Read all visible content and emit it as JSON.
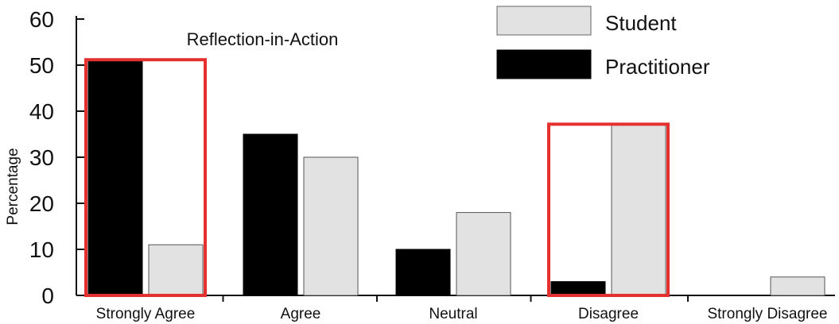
{
  "chart_data": {
    "type": "bar",
    "title": "Reflection-in-Action",
    "xlabel": "",
    "ylabel": "Percentage",
    "ylim": [
      0,
      60
    ],
    "yticks": [
      0,
      10,
      20,
      30,
      40,
      50,
      60
    ],
    "categories": [
      "Strongly Agree",
      "Agree",
      "Neutral",
      "Disagree",
      "Strongly Disagree"
    ],
    "series": [
      {
        "name": "Practitioner",
        "color": "#000000",
        "values": [
          51,
          35,
          10,
          3,
          0
        ]
      },
      {
        "name": "Student",
        "color": "#e2e2e2",
        "values": [
          11,
          30,
          18,
          37,
          4
        ]
      }
    ],
    "legend": {
      "position": "top-right",
      "order": [
        "Student",
        "Practitioner"
      ]
    },
    "highlights": {
      "color": "#e53030",
      "categories": [
        "Strongly Agree",
        "Disagree"
      ]
    },
    "grid": false
  }
}
